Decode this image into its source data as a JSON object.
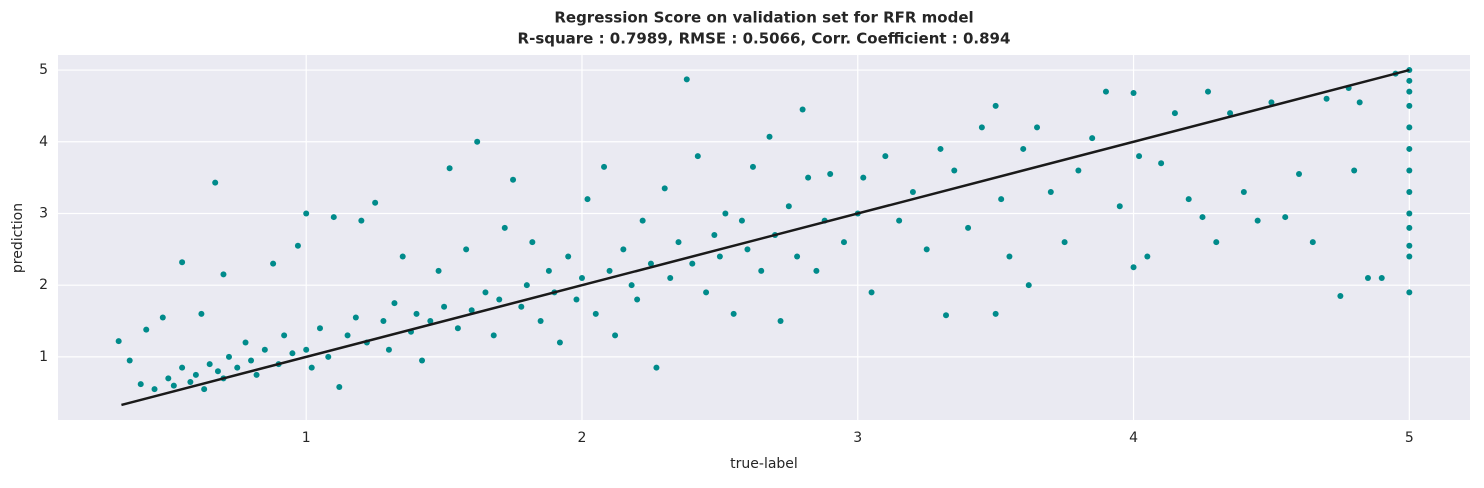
{
  "chart_data": {
    "type": "scatter",
    "title": "Regression Score on validation set for RFR model",
    "subtitle": "R-square : 0.7989,   RMSE : 0.5066,   Corr. Coefficient : 0.894",
    "xlabel": "true-label",
    "ylabel": "prediction",
    "xlim": [
      0.1,
      5.22
    ],
    "ylim": [
      0.12,
      5.21
    ],
    "xticks": [
      1,
      2,
      3,
      4,
      5
    ],
    "yticks": [
      1,
      2,
      3,
      4,
      5
    ],
    "grid": true,
    "series": [
      {
        "color": "#008b8b",
        "x": [
          0.32,
          0.36,
          0.4,
          0.42,
          0.45,
          0.48,
          0.5,
          0.52,
          0.55,
          0.55,
          0.58,
          0.6,
          0.62,
          0.63,
          0.65,
          0.67,
          0.68,
          0.7,
          0.7,
          0.72,
          0.75,
          0.78,
          0.8,
          0.82,
          0.85,
          0.88,
          0.9,
          0.92,
          0.95,
          0.97,
          1.0,
          1.0,
          1.02,
          1.05,
          1.08,
          1.1,
          1.12,
          1.15,
          1.18,
          1.2,
          1.22,
          1.25,
          1.28,
          1.3,
          1.32,
          1.35,
          1.38,
          1.4,
          1.42,
          1.45,
          1.48,
          1.5,
          1.52,
          1.55,
          1.58,
          1.6,
          1.62,
          1.65,
          1.68,
          1.7,
          1.72,
          1.75,
          1.78,
          1.8,
          1.82,
          1.85,
          1.88,
          1.9,
          1.92,
          1.95,
          1.98,
          2.0,
          2.02,
          2.05,
          2.08,
          2.1,
          2.12,
          2.15,
          2.18,
          2.2,
          2.22,
          2.25,
          2.27,
          2.3,
          2.32,
          2.35,
          2.38,
          2.4,
          2.42,
          2.45,
          2.48,
          2.5,
          2.52,
          2.55,
          2.58,
          2.6,
          2.62,
          2.65,
          2.68,
          2.7,
          2.72,
          2.75,
          2.78,
          2.8,
          2.82,
          2.85,
          2.88,
          2.9,
          2.95,
          3.0,
          3.02,
          3.05,
          3.1,
          3.15,
          3.2,
          3.25,
          3.3,
          3.32,
          3.35,
          3.4,
          3.45,
          3.5,
          3.5,
          3.52,
          3.55,
          3.6,
          3.62,
          3.65,
          3.7,
          3.75,
          3.8,
          3.85,
          3.9,
          3.95,
          4.0,
          4.0,
          4.02,
          4.05,
          4.1,
          4.15,
          4.2,
          4.25,
          4.27,
          4.3,
          4.35,
          4.4,
          4.45,
          4.5,
          4.55,
          4.6,
          4.65,
          4.7,
          4.75,
          4.78,
          4.8,
          4.82,
          4.85,
          4.9,
          4.95,
          5,
          5,
          5,
          5,
          5,
          5,
          5,
          5,
          5,
          5,
          5,
          5,
          5
        ],
        "y": [
          1.22,
          0.95,
          0.62,
          1.38,
          0.55,
          1.55,
          0.7,
          0.6,
          2.32,
          0.85,
          0.65,
          0.75,
          1.6,
          0.55,
          0.9,
          3.43,
          0.8,
          2.15,
          0.7,
          1.0,
          0.85,
          1.2,
          0.95,
          0.75,
          1.1,
          2.3,
          0.9,
          1.3,
          1.05,
          2.55,
          3.0,
          1.1,
          0.85,
          1.4,
          1.0,
          2.95,
          0.58,
          1.3,
          1.55,
          2.9,
          1.2,
          3.15,
          1.5,
          1.1,
          1.75,
          2.4,
          1.35,
          1.6,
          0.95,
          1.5,
          2.2,
          1.7,
          3.63,
          1.4,
          2.5,
          1.65,
          4.0,
          1.9,
          1.3,
          1.8,
          2.8,
          3.47,
          1.7,
          2.0,
          2.6,
          1.5,
          2.2,
          1.9,
          1.2,
          2.4,
          1.8,
          2.1,
          3.2,
          1.6,
          3.65,
          2.2,
          1.3,
          2.5,
          2.0,
          1.8,
          2.9,
          2.3,
          0.85,
          3.35,
          2.1,
          2.6,
          4.87,
          2.3,
          3.8,
          1.9,
          2.7,
          2.4,
          3.0,
          1.6,
          2.9,
          2.5,
          3.65,
          2.2,
          4.07,
          2.7,
          1.5,
          3.1,
          2.4,
          4.45,
          3.5,
          2.2,
          2.9,
          3.55,
          2.6,
          3.0,
          3.5,
          1.9,
          3.8,
          2.9,
          3.3,
          2.5,
          3.9,
          1.58,
          3.6,
          2.8,
          4.2,
          1.6,
          4.5,
          3.2,
          2.4,
          3.9,
          2.0,
          4.2,
          3.3,
          2.6,
          3.6,
          4.05,
          4.7,
          3.1,
          2.25,
          4.68,
          3.8,
          2.4,
          3.7,
          4.4,
          3.2,
          2.95,
          4.7,
          2.6,
          4.4,
          3.3,
          2.9,
          4.55,
          2.95,
          3.55,
          2.6,
          4.6,
          1.85,
          4.75,
          3.6,
          4.55,
          2.1,
          2.1,
          4.95,
          1.9,
          2.4,
          2.55,
          2.8,
          3.0,
          3.3,
          3.6,
          3.9,
          4.2,
          4.5,
          4.7,
          4.85,
          5.0
        ]
      }
    ],
    "line": {
      "color": "#1a1a1a",
      "x": [
        0.33,
        5
      ],
      "y": [
        0.33,
        5
      ]
    }
  }
}
